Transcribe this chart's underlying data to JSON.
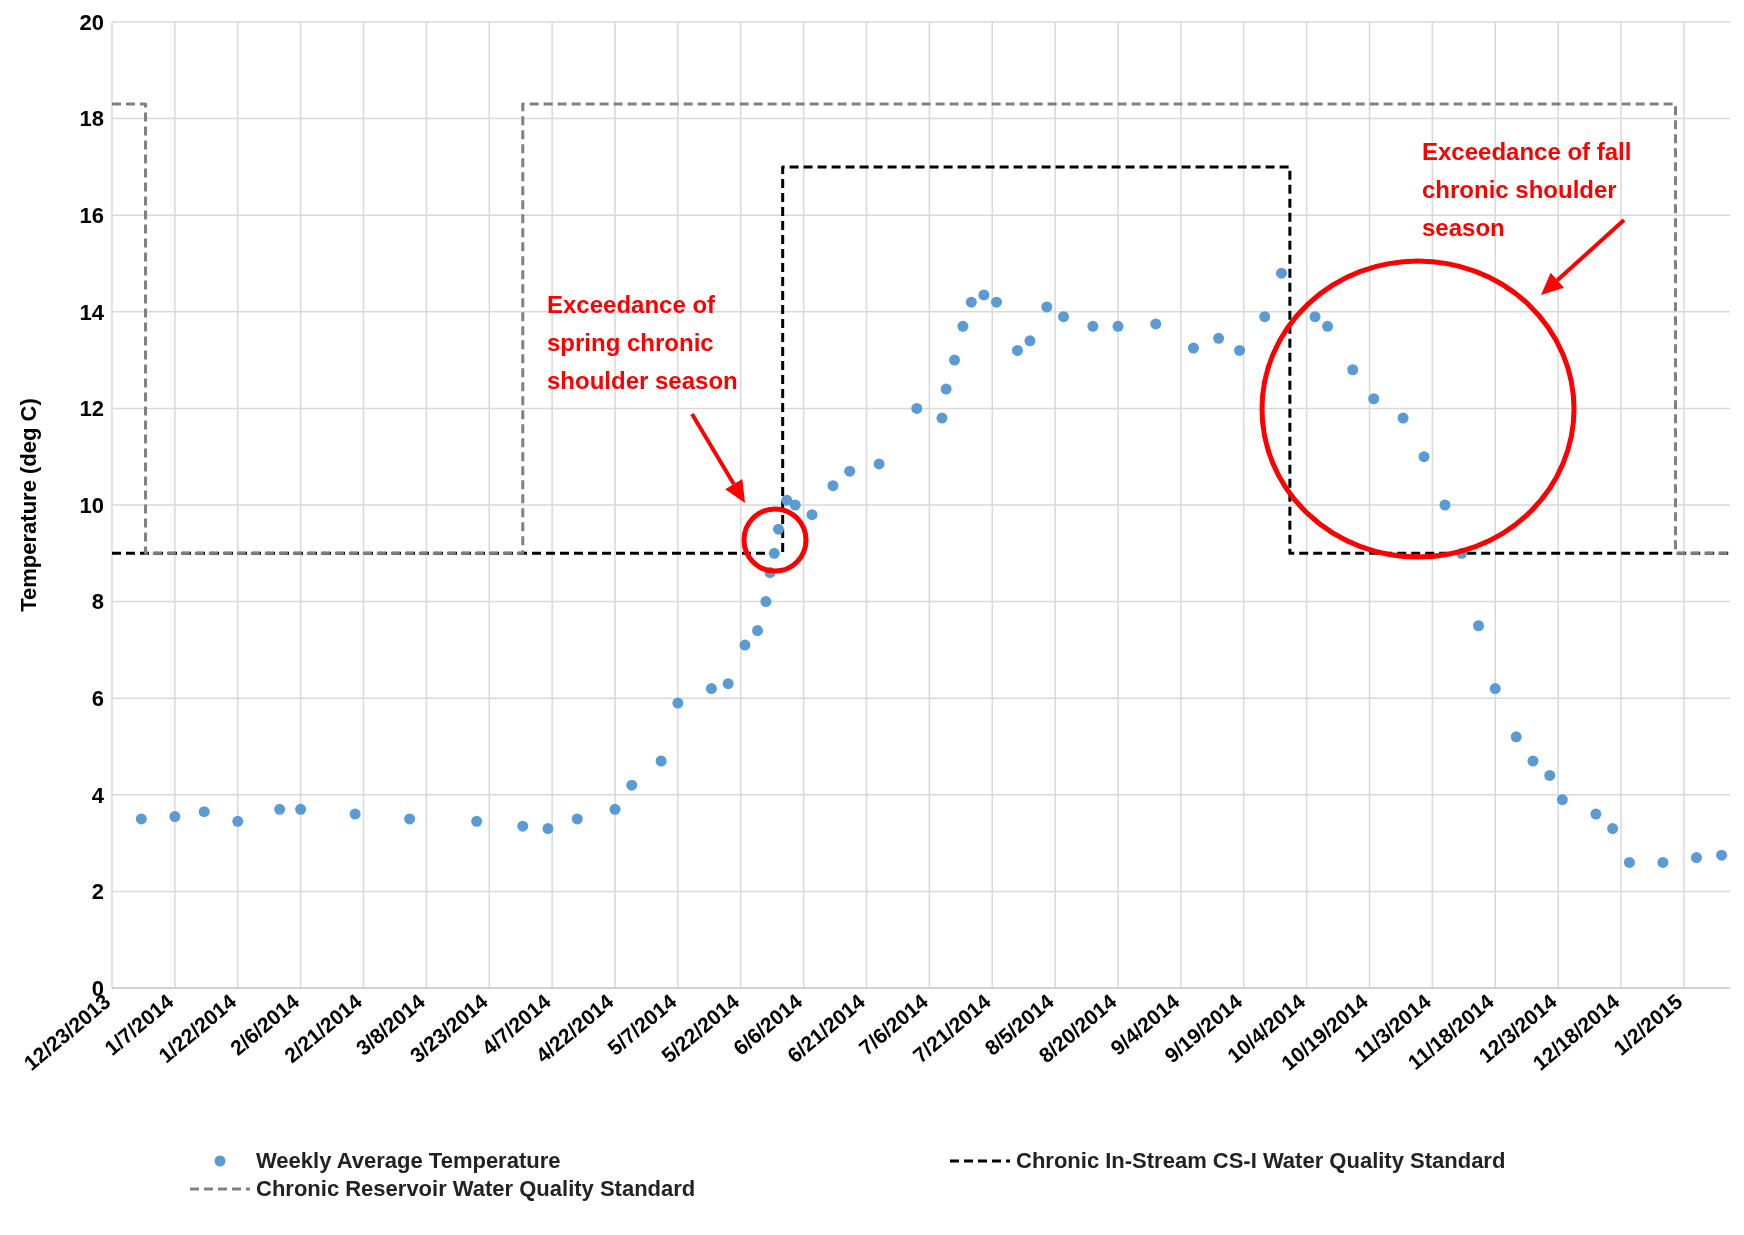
{
  "chart_data": {
    "type": "scatter",
    "ylabel": "Temperature (deg C)",
    "xlim": [
      "2013-12-23",
      "2015-01-13"
    ],
    "xticks": [
      {
        "value": "2013-12-23",
        "label": "12/23/2013"
      },
      {
        "value": "2014-01-07",
        "label": "1/7/2014"
      },
      {
        "value": "2014-01-22",
        "label": "1/22/2014"
      },
      {
        "value": "2014-02-06",
        "label": "2/6/2014"
      },
      {
        "value": "2014-02-21",
        "label": "2/21/2014"
      },
      {
        "value": "2014-03-08",
        "label": "3/8/2014"
      },
      {
        "value": "2014-03-23",
        "label": "3/23/2014"
      },
      {
        "value": "2014-04-07",
        "label": "4/7/2014"
      },
      {
        "value": "2014-04-22",
        "label": "4/22/2014"
      },
      {
        "value": "2014-05-07",
        "label": "5/7/2014"
      },
      {
        "value": "2014-05-22",
        "label": "5/22/2014"
      },
      {
        "value": "2014-06-06",
        "label": "6/6/2014"
      },
      {
        "value": "2014-06-21",
        "label": "6/21/2014"
      },
      {
        "value": "2014-07-06",
        "label": "7/6/2014"
      },
      {
        "value": "2014-07-21",
        "label": "7/21/2014"
      },
      {
        "value": "2014-08-05",
        "label": "8/5/2014"
      },
      {
        "value": "2014-08-20",
        "label": "8/20/2014"
      },
      {
        "value": "2014-09-04",
        "label": "9/4/2014"
      },
      {
        "value": "2014-09-19",
        "label": "9/19/2014"
      },
      {
        "value": "2014-10-04",
        "label": "10/4/2014"
      },
      {
        "value": "2014-10-19",
        "label": "10/19/2014"
      },
      {
        "value": "2014-11-03",
        "label": "11/3/2014"
      },
      {
        "value": "2014-11-18",
        "label": "11/18/2014"
      },
      {
        "value": "2014-12-03",
        "label": "12/3/2014"
      },
      {
        "value": "2014-12-18",
        "label": "12/18/2014"
      },
      {
        "value": "2015-01-02",
        "label": "1/2/2015"
      }
    ],
    "ylim": [
      0,
      20
    ],
    "yticks": [
      0,
      2,
      4,
      6,
      8,
      10,
      12,
      14,
      16,
      18,
      20
    ],
    "grid": true,
    "legend": "bottom",
    "series": [
      {
        "name": "Weekly Average Temperature",
        "marker": "circle",
        "color": "#5b9bd5",
        "x": [
          "2013-12-30",
          "2014-01-07",
          "2014-01-14",
          "2014-01-22",
          "2014-02-01",
          "2014-02-06",
          "2014-02-19",
          "2014-03-04",
          "2014-03-20",
          "2014-03-31",
          "2014-04-06",
          "2014-04-13",
          "2014-04-22",
          "2014-04-26",
          "2014-05-03",
          "2014-05-07",
          "2014-05-15",
          "2014-05-19",
          "2014-05-23",
          "2014-05-26",
          "2014-05-28",
          "2014-05-29",
          "2014-05-30",
          "2014-05-31",
          "2014-06-02",
          "2014-06-04",
          "2014-06-08",
          "2014-06-13",
          "2014-06-17",
          "2014-06-24",
          "2014-07-03",
          "2014-07-09",
          "2014-07-10",
          "2014-07-12",
          "2014-07-14",
          "2014-07-16",
          "2014-07-19",
          "2014-07-22",
          "2014-07-27",
          "2014-07-30",
          "2014-08-03",
          "2014-08-07",
          "2014-08-14",
          "2014-08-20",
          "2014-08-29",
          "2014-09-07",
          "2014-09-13",
          "2014-09-18",
          "2014-09-24",
          "2014-09-28",
          "2014-10-06",
          "2014-10-09",
          "2014-10-15",
          "2014-10-20",
          "2014-10-27",
          "2014-11-01",
          "2014-11-06",
          "2014-11-10",
          "2014-11-14",
          "2014-11-18",
          "2014-11-23",
          "2014-11-27",
          "2014-12-01",
          "2014-12-04",
          "2014-12-12",
          "2014-12-16",
          "2014-12-20",
          "2014-12-28",
          "2015-01-05",
          "2015-01-11"
        ],
        "values": [
          3.5,
          3.55,
          3.65,
          3.45,
          3.7,
          3.7,
          3.6,
          3.5,
          3.45,
          3.35,
          3.3,
          3.5,
          3.7,
          4.2,
          4.7,
          5.9,
          6.2,
          6.3,
          7.1,
          7.4,
          8.0,
          8.6,
          9.0,
          9.5,
          10.1,
          10.0,
          9.8,
          10.4,
          10.7,
          10.85,
          12.0,
          11.8,
          12.4,
          13.0,
          13.7,
          14.2,
          14.35,
          14.2,
          13.2,
          13.4,
          14.1,
          13.9,
          13.7,
          13.7,
          13.75,
          13.25,
          13.45,
          13.2,
          13.9,
          14.8,
          13.9,
          13.7,
          12.8,
          12.2,
          11.8,
          11.0,
          10.0,
          9.0,
          7.5,
          6.2,
          5.2,
          4.7,
          4.4,
          3.9,
          3.6,
          3.3,
          2.6,
          2.6,
          2.7,
          2.75
        ]
      },
      {
        "name": "Chronic In-Stream CS-I Water Quality Standard",
        "type": "line",
        "color": "#000000",
        "line_style": "dashed",
        "x": [
          "2013-12-23",
          "2014-06-01",
          "2014-06-01",
          "2014-09-30",
          "2014-09-30",
          "2015-01-13"
        ],
        "values": [
          9,
          9,
          17,
          17,
          9,
          9
        ]
      },
      {
        "name": "Chronic Reservoir Water Quality Standard",
        "type": "line",
        "color": "#808080",
        "line_style": "dashed",
        "x": [
          "2013-12-23",
          "2013-12-31",
          "2013-12-31",
          "2014-03-31",
          "2014-03-31",
          "2014-12-31",
          "2014-12-31",
          "2015-01-13"
        ],
        "values": [
          18.3,
          18.3,
          9,
          9,
          18.3,
          18.3,
          9,
          9
        ]
      }
    ],
    "annotations": [
      "Exceedance of\nspring chronic\nshoulder season",
      "Exceedance of fall\nchronic shoulder\nseason"
    ]
  }
}
